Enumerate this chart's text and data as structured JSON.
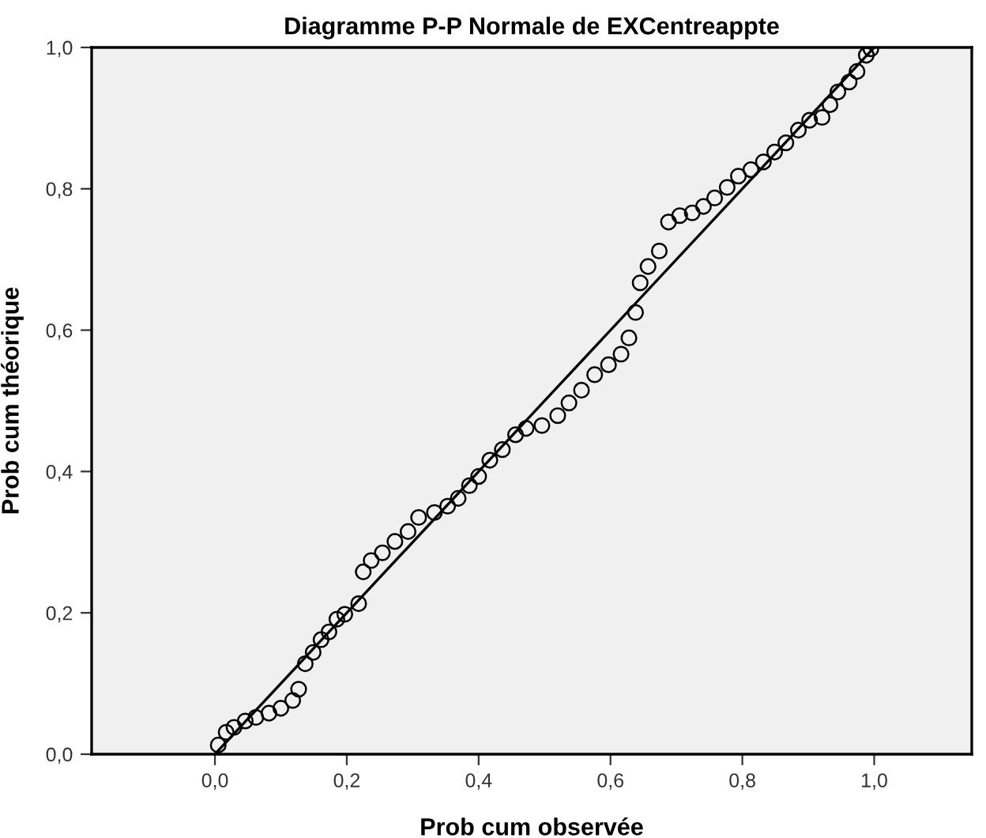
{
  "chart_data": {
    "type": "scatter",
    "title": "Diagramme P-P Normale de EXCentreappte",
    "xlabel": "Prob cum observée",
    "ylabel": "Prob cum théorique",
    "xlim": [
      -0.187,
      1.148
    ],
    "ylim": [
      0,
      1
    ],
    "xticks": [
      {
        "value": 0,
        "label": "0,0"
      },
      {
        "value": 0.2,
        "label": "0,2"
      },
      {
        "value": 0.4,
        "label": "0,4"
      },
      {
        "value": 0.6,
        "label": "0,6"
      },
      {
        "value": 0.8,
        "label": "0,8"
      },
      {
        "value": 1,
        "label": "1,0"
      }
    ],
    "yticks": [
      {
        "value": 0,
        "label": "0,0"
      },
      {
        "value": 0.2,
        "label": "0,2"
      },
      {
        "value": 0.4,
        "label": "0,4"
      },
      {
        "value": 0.6,
        "label": "0,6"
      },
      {
        "value": 0.8,
        "label": "0,8"
      },
      {
        "value": 1,
        "label": "1,0"
      }
    ],
    "grid": false,
    "legend": false,
    "series": [
      {
        "marker": "circle",
        "color": "#000000",
        "x": [
          0.005,
          0.017,
          0.029,
          0.046,
          0.062,
          0.082,
          0.1,
          0.118,
          0.127,
          0.137,
          0.149,
          0.161,
          0.173,
          0.185,
          0.197,
          0.218,
          0.225,
          0.237,
          0.254,
          0.273,
          0.293,
          0.309,
          0.333,
          0.353,
          0.369,
          0.386,
          0.4,
          0.417,
          0.436,
          0.456,
          0.472,
          0.496,
          0.52,
          0.537,
          0.556,
          0.576,
          0.597,
          0.616,
          0.628,
          0.638,
          0.645,
          0.657,
          0.674,
          0.688,
          0.705,
          0.724,
          0.741,
          0.758,
          0.777,
          0.794,
          0.813,
          0.832,
          0.849,
          0.866,
          0.885,
          0.902,
          0.921,
          0.933,
          0.945,
          0.962,
          0.974,
          0.988,
          0.995
        ],
        "values": [
          0.013,
          0.031,
          0.038,
          0.047,
          0.052,
          0.058,
          0.065,
          0.076,
          0.092,
          0.128,
          0.144,
          0.162,
          0.173,
          0.191,
          0.198,
          0.213,
          0.258,
          0.274,
          0.285,
          0.301,
          0.315,
          0.335,
          0.342,
          0.351,
          0.362,
          0.38,
          0.393,
          0.416,
          0.431,
          0.452,
          0.461,
          0.465,
          0.479,
          0.497,
          0.515,
          0.537,
          0.551,
          0.566,
          0.589,
          0.625,
          0.667,
          0.69,
          0.712,
          0.753,
          0.762,
          0.766,
          0.775,
          0.787,
          0.802,
          0.818,
          0.827,
          0.838,
          0.852,
          0.865,
          0.883,
          0.897,
          0.901,
          0.919,
          0.937,
          0.951,
          0.966,
          0.989,
          0.998
        ]
      },
      {
        "type": "line",
        "marker": "none",
        "line_style": "solid",
        "color": "#000000",
        "x": [
          0,
          1
        ],
        "values": [
          0,
          1
        ]
      }
    ]
  }
}
